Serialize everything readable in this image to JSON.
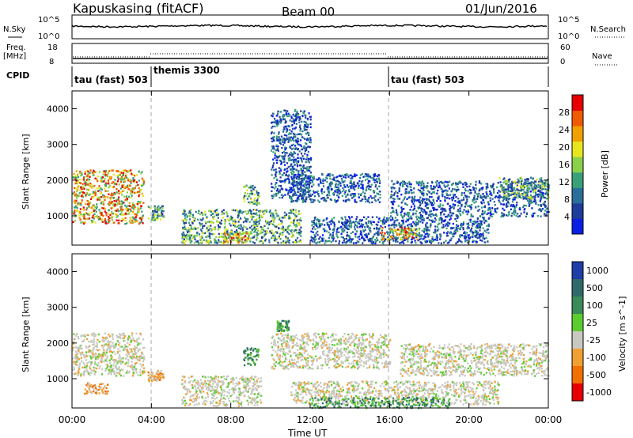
{
  "header": {
    "station": "Kapuskasing (fitACF)",
    "beam": "Beam 00",
    "date": "01/Jun/2016"
  },
  "summary": {
    "nsky_label": "N.Sky",
    "nsky_ticks": [
      "10^5",
      "10^0"
    ],
    "nsearch_label": "N.Search",
    "nsearch_ticks": [
      "10^5",
      "10^0"
    ],
    "freq_label": "Freq.",
    "freq_unit": "[MHz]",
    "freq_ticks": [
      "18",
      "8"
    ],
    "nave_label": "Nave",
    "nave_ticks": [
      "60",
      "0"
    ],
    "cpid_label": "CPID",
    "cpid_segments": [
      {
        "name": "tau (fast) 503",
        "start_h": 0,
        "end_h": 4
      },
      {
        "name": "themis 3300",
        "start_h": 4,
        "end_h": 16
      },
      {
        "name": "tau (fast) 503",
        "start_h": 16,
        "end_h": 24
      }
    ]
  },
  "chart_data": [
    {
      "type": "heatmap",
      "title": "",
      "ylabel": "Slant Range [km]",
      "xlabel": "",
      "ylim": [
        180,
        4500
      ],
      "yticks": [
        "1000",
        "2000",
        "3000",
        "4000"
      ],
      "xlim": [
        0,
        24
      ],
      "colorbar_label": "Power [dB]",
      "colorbar_ticks": [
        "4",
        "8",
        "12",
        "16",
        "20",
        "24",
        "28"
      ],
      "colors": [
        "#0a1fe6",
        "#1e3c9a",
        "#2a6e9a",
        "#3aa07a",
        "#8ad04a",
        "#e6e620",
        "#f0a000",
        "#f05a00",
        "#e60000"
      ],
      "echo_regions": [
        {
          "t_start": 0.0,
          "t_end": 3.6,
          "r_min": 800,
          "r_max": 2300,
          "level": "high"
        },
        {
          "t_start": 3.8,
          "t_end": 4.6,
          "r_min": 900,
          "r_max": 1300,
          "level": "mid"
        },
        {
          "t_start": 5.5,
          "t_end": 11.5,
          "r_min": 250,
          "r_max": 1200,
          "level": "mid"
        },
        {
          "t_start": 7.5,
          "t_end": 9.0,
          "r_min": 250,
          "r_max": 550,
          "level": "high"
        },
        {
          "t_start": 8.6,
          "t_end": 9.4,
          "r_min": 1300,
          "r_max": 1900,
          "level": "mid"
        },
        {
          "t_start": 10.0,
          "t_end": 12.0,
          "r_min": 1500,
          "r_max": 4000,
          "level": "low"
        },
        {
          "t_start": 11.0,
          "t_end": 15.5,
          "r_min": 1400,
          "r_max": 2200,
          "level": "low"
        },
        {
          "t_start": 12.0,
          "t_end": 21.0,
          "r_min": 250,
          "r_max": 1000,
          "level": "low"
        },
        {
          "t_start": 15.5,
          "t_end": 17.5,
          "r_min": 350,
          "r_max": 700,
          "level": "high"
        },
        {
          "t_start": 16.0,
          "t_end": 24.0,
          "r_min": 1000,
          "r_max": 2000,
          "level": "low"
        },
        {
          "t_start": 21.5,
          "t_end": 24.0,
          "r_min": 1500,
          "r_max": 2100,
          "level": "mid"
        }
      ]
    },
    {
      "type": "heatmap",
      "title": "",
      "ylabel": "Slant Range [km]",
      "xlabel": "Time UT",
      "ylim": [
        180,
        4500
      ],
      "yticks": [
        "1000",
        "2000",
        "3000",
        "4000"
      ],
      "xlim": [
        0,
        24
      ],
      "xticks": [
        "00:00",
        "04:00",
        "08:00",
        "12:00",
        "16:00",
        "20:00",
        "00:00"
      ],
      "colorbar_label": "Velocity [m s^-1]",
      "colorbar_ticks": [
        "1000",
        "500",
        "100",
        "25",
        "-25",
        "-100",
        "-500",
        "-1000"
      ],
      "colors": [
        "#1f3ca8",
        "#2f6a6a",
        "#3a8a5a",
        "#5ccc30",
        "#c8c8c0",
        "#f0a030",
        "#f07000",
        "#e60000"
      ],
      "echo_regions": [
        {
          "t_start": 0.0,
          "t_end": 3.6,
          "r_min": 1100,
          "r_max": 2300,
          "class": "ground"
        },
        {
          "t_start": 0.6,
          "t_end": 1.8,
          "r_min": 600,
          "r_max": 900,
          "class": "negative"
        },
        {
          "t_start": 3.8,
          "t_end": 4.6,
          "r_min": 950,
          "r_max": 1250,
          "class": "negative"
        },
        {
          "t_start": 5.5,
          "t_end": 9.5,
          "r_min": 250,
          "r_max": 1100,
          "class": "ground"
        },
        {
          "t_start": 8.6,
          "t_end": 9.4,
          "r_min": 1400,
          "r_max": 1900,
          "class": "positive"
        },
        {
          "t_start": 10.3,
          "t_end": 10.9,
          "r_min": 2350,
          "r_max": 2650,
          "class": "positive"
        },
        {
          "t_start": 10.0,
          "t_end": 16.0,
          "r_min": 1300,
          "r_max": 2300,
          "class": "ground"
        },
        {
          "t_start": 11.0,
          "t_end": 21.5,
          "r_min": 300,
          "r_max": 950,
          "class": "ground"
        },
        {
          "t_start": 12.0,
          "t_end": 19.0,
          "r_min": 200,
          "r_max": 500,
          "class": "positive"
        },
        {
          "t_start": 16.5,
          "t_end": 24.0,
          "r_min": 1100,
          "r_max": 2000,
          "class": "ground"
        }
      ]
    }
  ]
}
